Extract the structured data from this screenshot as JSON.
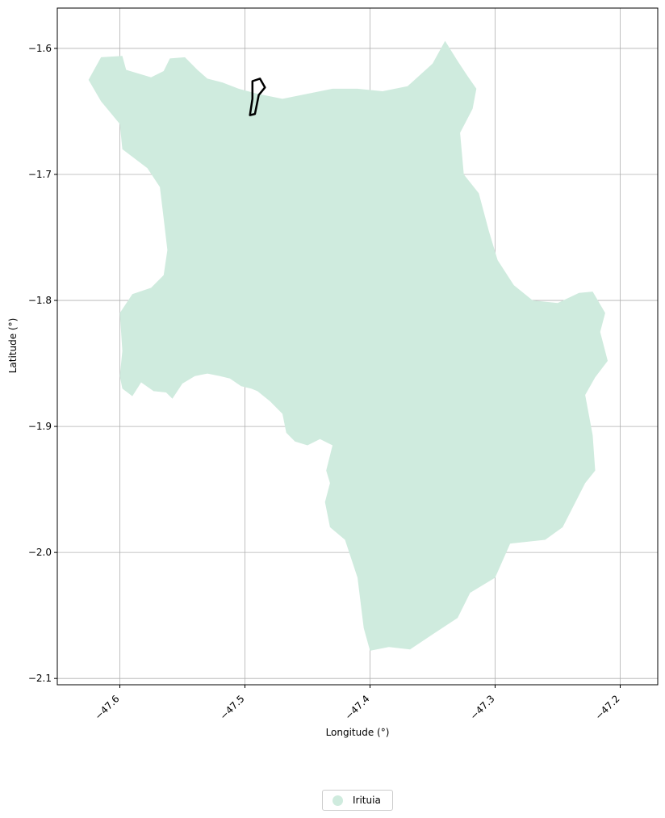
{
  "chart_data": {
    "type": "map",
    "xlabel": "Longitude (°)",
    "ylabel": "Latitude (°)",
    "xlim": [
      -47.65,
      -47.17
    ],
    "ylim": [
      -2.105,
      -1.568
    ],
    "xticks": [
      -47.6,
      -47.5,
      -47.4,
      -47.3,
      -47.2
    ],
    "yticks": [
      -1.6,
      -1.7,
      -1.8,
      -1.9,
      -2.0,
      -2.1
    ],
    "xtick_labels": [
      "−47.6",
      "−47.5",
      "−47.4",
      "−47.3",
      "−47.2"
    ],
    "ytick_labels": [
      "−1.6",
      "−1.7",
      "−1.8",
      "−1.9",
      "−2.0",
      "−2.1"
    ],
    "grid": true,
    "legend_position": "bottom-center",
    "legend": [
      {
        "label": "Irituia",
        "color": "#cfebde"
      }
    ],
    "regions": [
      {
        "name": "Irituia",
        "fill": "#cfebde",
        "coords": [
          [
            -47.625,
            -1.625
          ],
          [
            -47.615,
            -1.607
          ],
          [
            -47.598,
            -1.606
          ],
          [
            -47.595,
            -1.617
          ],
          [
            -47.585,
            -1.62
          ],
          [
            -47.575,
            -1.623
          ],
          [
            -47.565,
            -1.618
          ],
          [
            -47.56,
            -1.608
          ],
          [
            -47.548,
            -1.607
          ],
          [
            -47.538,
            -1.617
          ],
          [
            -47.53,
            -1.624
          ],
          [
            -47.518,
            -1.627
          ],
          [
            -47.505,
            -1.632
          ],
          [
            -47.49,
            -1.636
          ],
          [
            -47.47,
            -1.64
          ],
          [
            -47.45,
            -1.636
          ],
          [
            -47.43,
            -1.632
          ],
          [
            -47.41,
            -1.632
          ],
          [
            -47.39,
            -1.634
          ],
          [
            -47.37,
            -1.63
          ],
          [
            -47.35,
            -1.612
          ],
          [
            -47.34,
            -1.594
          ],
          [
            -47.33,
            -1.61
          ],
          [
            -47.322,
            -1.622
          ],
          [
            -47.315,
            -1.632
          ],
          [
            -47.318,
            -1.648
          ],
          [
            -47.328,
            -1.667
          ],
          [
            -47.325,
            -1.7
          ],
          [
            -47.313,
            -1.715
          ],
          [
            -47.305,
            -1.745
          ],
          [
            -47.298,
            -1.768
          ],
          [
            -47.285,
            -1.788
          ],
          [
            -47.27,
            -1.8
          ],
          [
            -47.25,
            -1.802
          ],
          [
            -47.233,
            -1.794
          ],
          [
            -47.222,
            -1.793
          ],
          [
            -47.212,
            -1.81
          ],
          [
            -47.216,
            -1.825
          ],
          [
            -47.21,
            -1.848
          ],
          [
            -47.22,
            -1.861
          ],
          [
            -47.228,
            -1.875
          ],
          [
            -47.222,
            -1.907
          ],
          [
            -47.22,
            -1.935
          ],
          [
            -47.228,
            -1.945
          ],
          [
            -47.246,
            -1.98
          ],
          [
            -47.26,
            -1.99
          ],
          [
            -47.288,
            -1.993
          ],
          [
            -47.3,
            -2.02
          ],
          [
            -47.32,
            -2.032
          ],
          [
            -47.33,
            -2.052
          ],
          [
            -47.35,
            -2.065
          ],
          [
            -47.368,
            -2.077
          ],
          [
            -47.385,
            -2.075
          ],
          [
            -47.4,
            -2.078
          ],
          [
            -47.405,
            -2.06
          ],
          [
            -47.41,
            -2.02
          ],
          [
            -47.42,
            -1.99
          ],
          [
            -47.432,
            -1.98
          ],
          [
            -47.436,
            -1.96
          ],
          [
            -47.432,
            -1.945
          ],
          [
            -47.435,
            -1.935
          ],
          [
            -47.43,
            -1.915
          ],
          [
            -47.44,
            -1.91
          ],
          [
            -47.45,
            -1.915
          ],
          [
            -47.46,
            -1.912
          ],
          [
            -47.467,
            -1.905
          ],
          [
            -47.47,
            -1.89
          ],
          [
            -47.48,
            -1.88
          ],
          [
            -47.49,
            -1.872
          ],
          [
            -47.495,
            -1.87
          ],
          [
            -47.503,
            -1.868
          ],
          [
            -47.512,
            -1.862
          ],
          [
            -47.52,
            -1.86
          ],
          [
            -47.53,
            -1.858
          ],
          [
            -47.54,
            -1.86
          ],
          [
            -47.55,
            -1.866
          ],
          [
            -47.558,
            -1.878
          ],
          [
            -47.563,
            -1.873
          ],
          [
            -47.573,
            -1.872
          ],
          [
            -47.583,
            -1.865
          ],
          [
            -47.59,
            -1.876
          ],
          [
            -47.598,
            -1.87
          ],
          [
            -47.6,
            -1.86
          ],
          [
            -47.598,
            -1.84
          ],
          [
            -47.6,
            -1.81
          ],
          [
            -47.59,
            -1.795
          ],
          [
            -47.575,
            -1.79
          ],
          [
            -47.565,
            -1.78
          ],
          [
            -47.562,
            -1.76
          ],
          [
            -47.565,
            -1.735
          ],
          [
            -47.568,
            -1.71
          ],
          [
            -47.578,
            -1.695
          ],
          [
            -47.598,
            -1.68
          ],
          [
            -47.6,
            -1.66
          ],
          [
            -47.615,
            -1.642
          ]
        ]
      },
      {
        "name": "",
        "fill": "none",
        "stroke": "#000000",
        "coords": [
          [
            -47.494,
            -1.626
          ],
          [
            -47.488,
            -1.624
          ],
          [
            -47.484,
            -1.631
          ],
          [
            -47.489,
            -1.637
          ],
          [
            -47.492,
            -1.652
          ],
          [
            -47.496,
            -1.653
          ],
          [
            -47.494,
            -1.64
          ]
        ]
      }
    ]
  }
}
